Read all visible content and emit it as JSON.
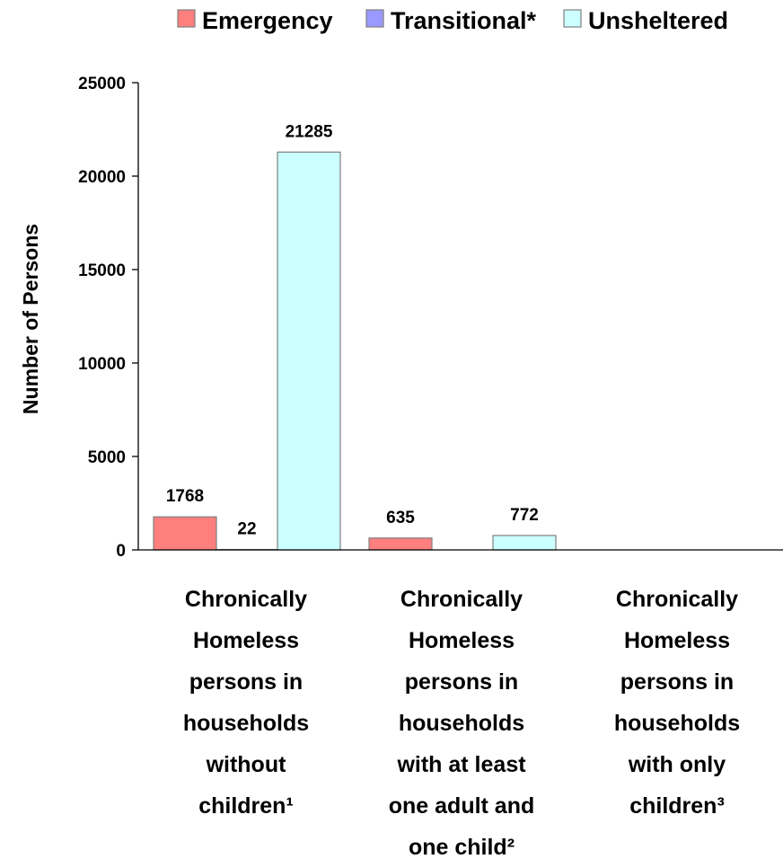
{
  "chart_data": {
    "type": "bar",
    "ylabel": "Number of Persons",
    "ylim": [
      0,
      25000
    ],
    "yticks": [
      "0",
      "5000",
      "10000",
      "15000",
      "20000",
      "25000"
    ],
    "legend_position": "top",
    "grid": false,
    "categories": [
      [
        "Chronically",
        "Homeless",
        "persons in",
        "households",
        "without",
        "children¹"
      ],
      [
        "Chronically",
        "Homeless",
        "persons in",
        "households",
        "with at least",
        "one adult and",
        "one child²"
      ],
      [
        "Chronically",
        "Homeless",
        "persons in",
        "households",
        "with only",
        "children³"
      ]
    ],
    "series": [
      {
        "name": "Emergency",
        "color": "#ff7f7f",
        "values": [
          1768,
          635,
          0
        ],
        "labels": [
          "1768",
          "635",
          ""
        ]
      },
      {
        "name": "Transitional*",
        "color": "#9999ff",
        "values": [
          22,
          0,
          0
        ],
        "labels": [
          "22",
          "",
          ""
        ]
      },
      {
        "name": "Unsheltered",
        "color": "#ccffff",
        "values": [
          21285,
          772,
          0
        ],
        "labels": [
          "21285",
          "772",
          ""
        ]
      }
    ]
  }
}
